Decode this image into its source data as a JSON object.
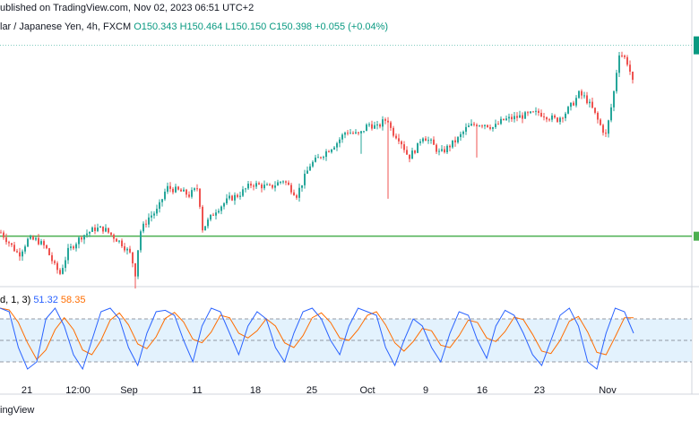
{
  "header": {
    "published": "ublished on TradingView.com, Nov 02, 2023 06:51 UTC+2"
  },
  "symbol": {
    "name": "lar / Japanese Yen, 4h, FXCM",
    "open": "O150.343",
    "high": "H150.464",
    "low": "L150.150",
    "close": "C150.398",
    "change": "+0.055 (+0.04%)"
  },
  "oscillator": {
    "label": "d, 1, 3)",
    "k_value": "51.32",
    "d_value": "58.35"
  },
  "footer": {
    "brand": "ingView"
  },
  "colors": {
    "up": "#26a69a",
    "down": "#ef5350",
    "support": "#4caf50",
    "current_price": "#089981",
    "k_line": "#2962ff",
    "d_line": "#ff6d00",
    "band": "#e3f2fd"
  },
  "chart_data": {
    "type": "candlestick",
    "title": "",
    "x_labels": [
      "21",
      "12:00",
      "Sep",
      "11",
      "18",
      "25",
      "Oct",
      "9",
      "16",
      "23",
      "Nov"
    ],
    "close_path": [
      [
        0,
        145.4
      ],
      [
        10,
        145.1
      ],
      [
        20,
        144.8
      ],
      [
        30,
        145.2
      ],
      [
        40,
        145.2
      ],
      [
        50,
        145.0
      ],
      [
        60,
        144.5
      ],
      [
        66,
        144.3
      ],
      [
        75,
        144.9
      ],
      [
        90,
        145.3
      ],
      [
        105,
        145.5
      ],
      [
        115,
        145.5
      ],
      [
        125,
        145.3
      ],
      [
        135,
        145.1
      ],
      [
        145,
        144.8
      ],
      [
        150,
        144.3
      ],
      [
        155,
        145.4
      ],
      [
        165,
        145.8
      ],
      [
        175,
        146.0
      ],
      [
        185,
        146.6
      ],
      [
        200,
        146.5
      ],
      [
        210,
        146.4
      ],
      [
        220,
        146.6
      ],
      [
        225,
        145.5
      ],
      [
        240,
        146.0
      ],
      [
        255,
        146.3
      ],
      [
        265,
        146.4
      ],
      [
        280,
        146.7
      ],
      [
        300,
        146.6
      ],
      [
        315,
        146.8
      ],
      [
        330,
        146.4
      ],
      [
        345,
        147.2
      ],
      [
        360,
        147.5
      ],
      [
        375,
        147.8
      ],
      [
        385,
        148.1
      ],
      [
        400,
        148.0
      ],
      [
        410,
        148.3
      ],
      [
        420,
        148.2
      ],
      [
        428,
        148.4
      ],
      [
        432,
        148.4
      ],
      [
        436,
        148.1
      ],
      [
        445,
        147.9
      ],
      [
        455,
        147.4
      ],
      [
        465,
        147.7
      ],
      [
        470,
        148.0
      ],
      [
        480,
        147.8
      ],
      [
        490,
        147.5
      ],
      [
        500,
        147.7
      ],
      [
        510,
        147.9
      ],
      [
        520,
        148.2
      ],
      [
        530,
        148.3
      ],
      [
        540,
        148.3
      ],
      [
        550,
        148.2
      ],
      [
        560,
        148.4
      ],
      [
        580,
        148.5
      ],
      [
        600,
        148.6
      ],
      [
        610,
        148.5
      ],
      [
        620,
        148.4
      ],
      [
        630,
        148.6
      ],
      [
        640,
        148.9
      ],
      [
        645,
        149.1
      ],
      [
        652,
        149.0
      ],
      [
        660,
        148.7
      ],
      [
        668,
        148.3
      ],
      [
        675,
        148.0
      ],
      [
        680,
        148.6
      ],
      [
        685,
        149.3
      ],
      [
        688,
        149.9
      ],
      [
        690,
        150.2
      ],
      [
        695,
        150.1
      ],
      [
        700,
        149.9
      ],
      [
        705,
        149.4
      ],
      [
        707,
        149.3
      ]
    ],
    "wick_spikes": [
      {
        "index": 432,
        "low": 146.3
      },
      {
        "index": 402,
        "low": 147.5
      },
      {
        "index": 530,
        "low": 147.4
      },
      {
        "index": 150,
        "low": 143.9
      }
    ],
    "current_price": 150.398,
    "support_level": 145.3,
    "y_range": [
      144.0,
      150.7
    ],
    "stochastic": {
      "k": [
        95,
        90,
        40,
        10,
        20,
        80,
        95,
        70,
        30,
        10,
        50,
        90,
        95,
        80,
        40,
        15,
        60,
        90,
        92,
        85,
        50,
        20,
        70,
        95,
        90,
        60,
        30,
        70,
        90,
        80,
        40,
        20,
        60,
        90,
        95,
        80,
        50,
        30,
        70,
        95,
        90,
        85,
        40,
        15,
        50,
        80,
        70,
        40,
        20,
        60,
        90,
        85,
        50,
        25,
        70,
        92,
        85,
        60,
        30,
        15,
        50,
        85,
        95,
        70,
        20,
        10,
        60,
        95,
        90,
        60
      ],
      "k_current": 51.32,
      "d_current": 58.35,
      "upper_band": 80,
      "lower_band": 20,
      "mid": 50
    }
  }
}
